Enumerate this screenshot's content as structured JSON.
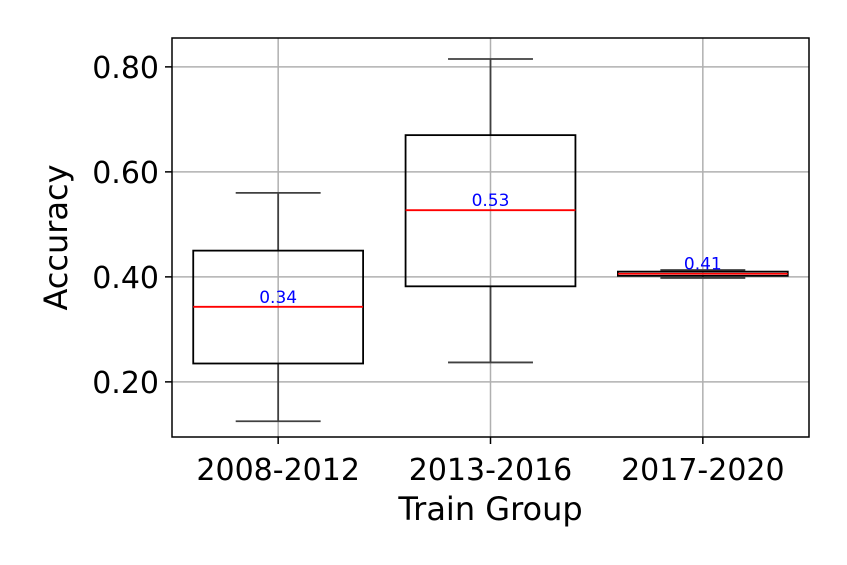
{
  "chart_data": {
    "type": "box",
    "xlabel": "Train Group",
    "ylabel": "Accuracy",
    "ylim": [
      0.095,
      0.855
    ],
    "yticks": [
      0.2,
      0.4,
      0.6,
      0.8
    ],
    "ytick_labels": [
      "0.20",
      "0.40",
      "0.60",
      "0.80"
    ],
    "grid": true,
    "categories": [
      "2008-2012",
      "2013-2016",
      "2017-2020"
    ],
    "boxes": [
      {
        "whisker_low": 0.125,
        "q1": 0.235,
        "median": 0.343,
        "q3": 0.45,
        "whisker_high": 0.56,
        "median_label": "0.34"
      },
      {
        "whisker_low": 0.237,
        "q1": 0.382,
        "median": 0.527,
        "q3": 0.67,
        "whisker_high": 0.815,
        "median_label": "0.53"
      },
      {
        "whisker_low": 0.398,
        "q1": 0.402,
        "median": 0.406,
        "q3": 0.41,
        "whisker_high": 0.413,
        "median_label": "0.41"
      }
    ],
    "colors": {
      "box_edge": "#000000",
      "whisker": "#404040",
      "median_line": "#ff0000",
      "median_label": "#0000ff",
      "grid": "#b0b0b0"
    }
  }
}
